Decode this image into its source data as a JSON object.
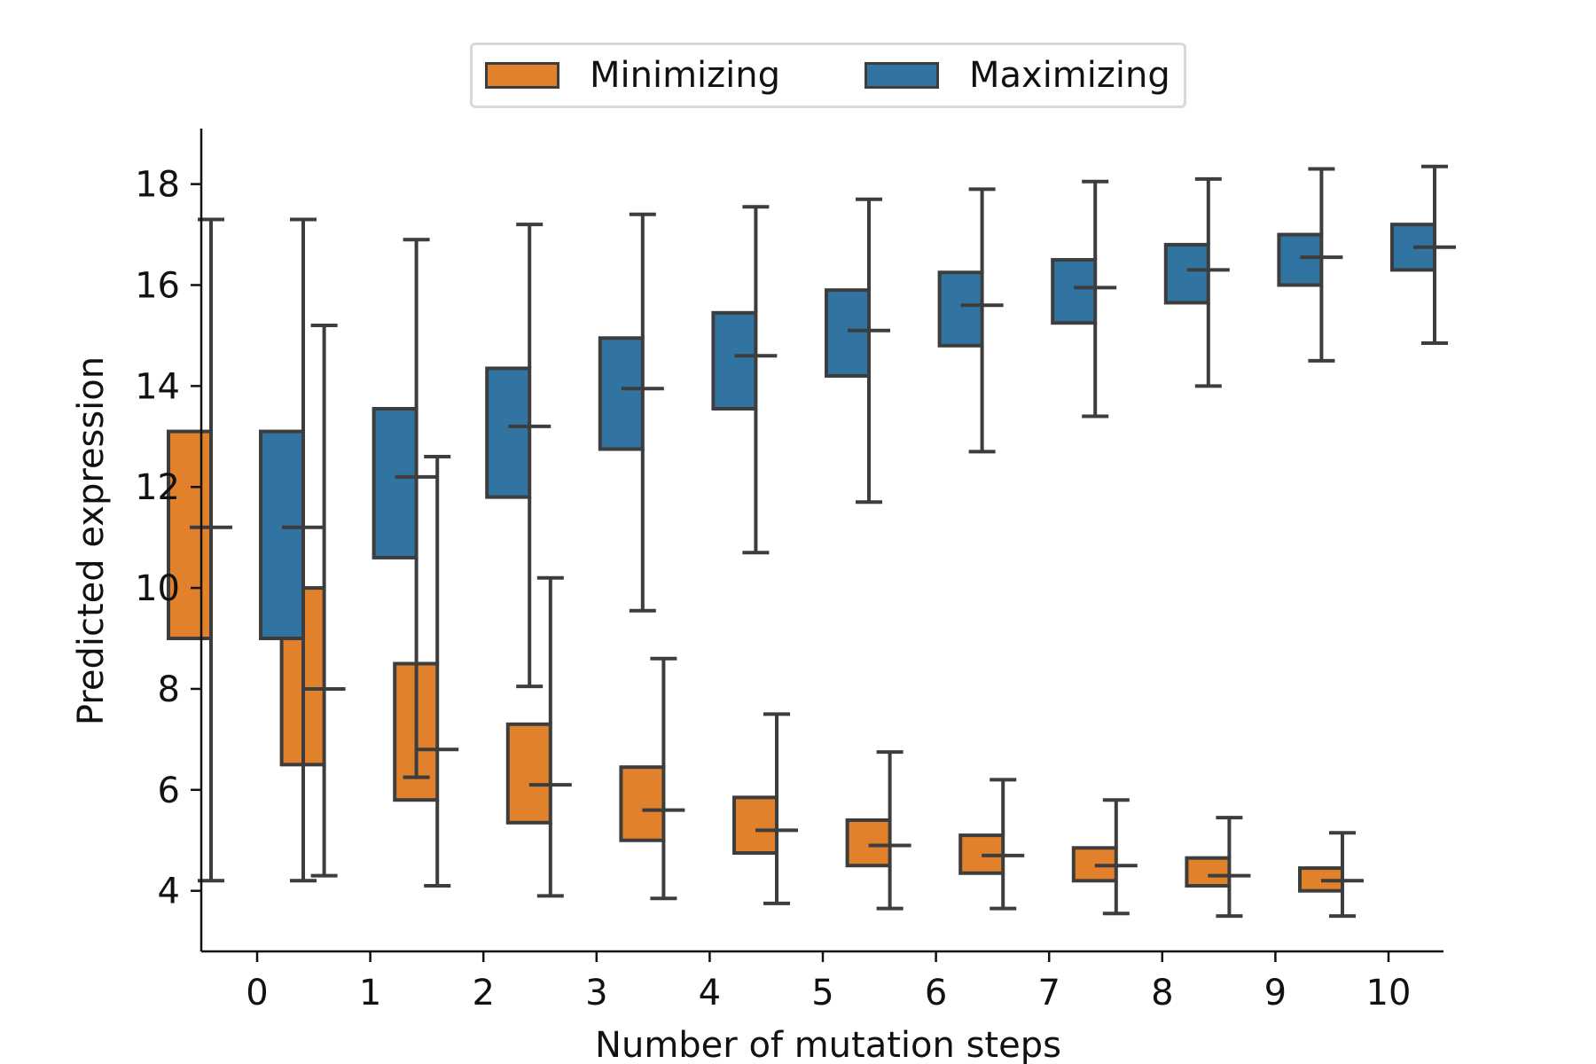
{
  "chart_data": {
    "type": "box",
    "xlabel": "Number of mutation steps",
    "ylabel": "Predicted expression",
    "categories": [
      "0",
      "1",
      "2",
      "3",
      "4",
      "5",
      "6",
      "7",
      "8",
      "9",
      "10"
    ],
    "yticks": [
      "4",
      "6",
      "8",
      "10",
      "12",
      "14",
      "16",
      "18"
    ],
    "ylim": [
      2.8,
      19.1
    ],
    "legend": {
      "placement": "top-center"
    },
    "series": [
      {
        "name": "Minimizing",
        "color": "#e1812c",
        "boxes": [
          {
            "whisker_low": 4.2,
            "q1": 9.0,
            "median": 11.2,
            "q3": 13.1,
            "whisker_high": 17.3
          },
          {
            "whisker_low": 4.3,
            "q1": 6.5,
            "median": 8.0,
            "q3": 10.0,
            "whisker_high": 15.2
          },
          {
            "whisker_low": 4.1,
            "q1": 5.8,
            "median": 6.8,
            "q3": 8.5,
            "whisker_high": 12.6
          },
          {
            "whisker_low": 3.9,
            "q1": 5.35,
            "median": 6.1,
            "q3": 7.3,
            "whisker_high": 10.2
          },
          {
            "whisker_low": 3.85,
            "q1": 5.0,
            "median": 5.6,
            "q3": 6.45,
            "whisker_high": 8.6
          },
          {
            "whisker_low": 3.75,
            "q1": 4.75,
            "median": 5.2,
            "q3": 5.85,
            "whisker_high": 7.5
          },
          {
            "whisker_low": 3.65,
            "q1": 4.5,
            "median": 4.9,
            "q3": 5.4,
            "whisker_high": 6.75
          },
          {
            "whisker_low": 3.65,
            "q1": 4.35,
            "median": 4.7,
            "q3": 5.1,
            "whisker_high": 6.2
          },
          {
            "whisker_low": 3.55,
            "q1": 4.2,
            "median": 4.5,
            "q3": 4.85,
            "whisker_high": 5.8
          },
          {
            "whisker_low": 3.5,
            "q1": 4.1,
            "median": 4.3,
            "q3": 4.65,
            "whisker_high": 5.45
          },
          {
            "whisker_low": 3.5,
            "q1": 4.0,
            "median": 4.2,
            "q3": 4.45,
            "whisker_high": 5.15
          }
        ]
      },
      {
        "name": "Maximizing",
        "color": "#3274a1",
        "boxes": [
          {
            "whisker_low": 4.2,
            "q1": 9.0,
            "median": 11.2,
            "q3": 13.1,
            "whisker_high": 17.3
          },
          {
            "whisker_low": 6.25,
            "q1": 10.6,
            "median": 12.2,
            "q3": 13.55,
            "whisker_high": 16.9
          },
          {
            "whisker_low": 8.05,
            "q1": 11.8,
            "median": 13.2,
            "q3": 14.35,
            "whisker_high": 17.2
          },
          {
            "whisker_low": 9.55,
            "q1": 12.75,
            "median": 13.95,
            "q3": 14.95,
            "whisker_high": 17.4
          },
          {
            "whisker_low": 10.7,
            "q1": 13.55,
            "median": 14.6,
            "q3": 15.45,
            "whisker_high": 17.55
          },
          {
            "whisker_low": 11.7,
            "q1": 14.2,
            "median": 15.1,
            "q3": 15.9,
            "whisker_high": 17.7
          },
          {
            "whisker_low": 12.7,
            "q1": 14.8,
            "median": 15.6,
            "q3": 16.25,
            "whisker_high": 17.9
          },
          {
            "whisker_low": 13.4,
            "q1": 15.25,
            "median": 15.95,
            "q3": 16.5,
            "whisker_high": 18.05
          },
          {
            "whisker_low": 14.0,
            "q1": 15.65,
            "median": 16.3,
            "q3": 16.8,
            "whisker_high": 18.1
          },
          {
            "whisker_low": 14.5,
            "q1": 16.0,
            "median": 16.55,
            "q3": 17.0,
            "whisker_high": 18.3
          },
          {
            "whisker_low": 14.85,
            "q1": 16.3,
            "median": 16.75,
            "q3": 17.2,
            "whisker_high": 18.35
          }
        ]
      }
    ]
  }
}
